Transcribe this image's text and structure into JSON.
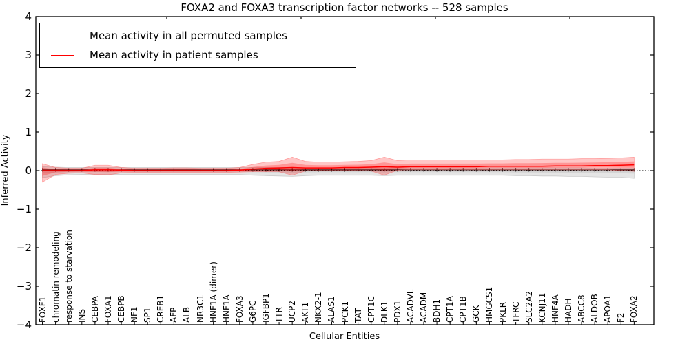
{
  "chart_data": {
    "type": "line",
    "title": "FOXA2 and FOXA3 transcription factor networks -- 528 samples",
    "xlabel": "Cellular Entities",
    "ylabel": "Inferred Activity",
    "ylim": [
      -4,
      4
    ],
    "grid": false,
    "legend_position": "upper left",
    "yticks": [
      4,
      3,
      2,
      1,
      0,
      -1,
      -2,
      -3,
      -4
    ],
    "ytick_labels": [
      "4",
      "3",
      "2",
      "1",
      "0",
      "−1",
      "−2",
      "−3",
      "−4"
    ],
    "zero_line": {
      "value": 0,
      "style": "dotted",
      "color": "#000000"
    },
    "categories": [
      "FOXF1",
      "chromatin remodeling",
      "response to starvation",
      "INS",
      "CEBPA",
      "FOXA1",
      "CEBPB",
      "NF1",
      "SP1",
      "CREB1",
      "AFP",
      "ALB",
      "NR3C1",
      "HNF1A (dimer)",
      "HNF1A",
      "FOXA3",
      "G6PC",
      "IGFBP1",
      "TTR",
      "UCP2",
      "AKT1",
      "NKX2-1",
      "ALAS1",
      "PCK1",
      "TAT",
      "CPT1C",
      "DLK1",
      "PDX1",
      "ACADVL",
      "ACADM",
      "BDH1",
      "CPT1A",
      "CPT1B",
      "GCK",
      "HMGCS1",
      "PKLR",
      "TFRC",
      "SLC2A2",
      "KCNJ11",
      "HNF4A",
      "HADH",
      "ABCC8",
      "ALDOB",
      "APOA1",
      "F2",
      "FOXA2"
    ],
    "series": [
      {
        "name": "Mean activity in all permuted samples",
        "color": "#000000",
        "marker": "vertical-tick",
        "values": [
          0.02,
          0.02,
          0.02,
          0.02,
          0.02,
          0.02,
          0.02,
          0.02,
          0.02,
          0.02,
          0.02,
          0.02,
          0.02,
          0.02,
          0.02,
          0.02,
          0.02,
          0.02,
          0.02,
          0.02,
          0.02,
          0.02,
          0.02,
          0.02,
          0.02,
          0.02,
          0.02,
          0.02,
          0.02,
          0.02,
          0.02,
          0.02,
          0.02,
          0.02,
          0.02,
          0.02,
          0.02,
          0.02,
          0.02,
          0.02,
          0.02,
          0.02,
          0.02,
          0.02,
          0.02,
          0.02
        ],
        "band_upper": [
          0.1,
          0.09,
          0.08,
          0.08,
          0.08,
          0.08,
          0.08,
          0.08,
          0.08,
          0.08,
          0.08,
          0.08,
          0.08,
          0.08,
          0.08,
          0.08,
          0.08,
          0.08,
          0.08,
          0.08,
          0.07,
          0.07,
          0.07,
          0.07,
          0.07,
          0.07,
          0.07,
          0.07,
          0.07,
          0.07,
          0.07,
          0.07,
          0.07,
          0.07,
          0.07,
          0.07,
          0.07,
          0.07,
          0.07,
          0.07,
          0.07,
          0.07,
          0.06,
          0.06,
          0.06,
          0.06
        ],
        "band_lower": [
          -0.18,
          -0.13,
          -0.11,
          -0.1,
          -0.1,
          -0.1,
          -0.1,
          -0.1,
          -0.1,
          -0.1,
          -0.1,
          -0.1,
          -0.1,
          -0.1,
          -0.1,
          -0.1,
          -0.12,
          -0.13,
          -0.14,
          -0.15,
          -0.13,
          -0.12,
          -0.12,
          -0.12,
          -0.12,
          -0.12,
          -0.13,
          -0.12,
          -0.12,
          -0.12,
          -0.12,
          -0.12,
          -0.12,
          -0.12,
          -0.12,
          -0.12,
          -0.13,
          -0.13,
          -0.14,
          -0.14,
          -0.15,
          -0.15,
          -0.16,
          -0.17,
          -0.17,
          -0.2
        ],
        "band_color": "#000000"
      },
      {
        "name": "Mean activity in patient samples",
        "color": "#ff0000",
        "marker": "none",
        "values": [
          0.0,
          0.0,
          0.0,
          0.0,
          0.02,
          0.02,
          0.01,
          0.0,
          0.0,
          0.0,
          0.0,
          0.0,
          0.0,
          0.0,
          0.0,
          0.01,
          0.04,
          0.06,
          0.07,
          0.08,
          0.07,
          0.07,
          0.07,
          0.08,
          0.08,
          0.09,
          0.1,
          0.09,
          0.1,
          0.1,
          0.1,
          0.1,
          0.1,
          0.1,
          0.11,
          0.11,
          0.11,
          0.11,
          0.11,
          0.12,
          0.12,
          0.12,
          0.13,
          0.13,
          0.14,
          0.15
        ],
        "band_upper": [
          0.18,
          0.08,
          0.06,
          0.06,
          0.14,
          0.14,
          0.08,
          0.06,
          0.06,
          0.06,
          0.07,
          0.07,
          0.06,
          0.06,
          0.06,
          0.08,
          0.16,
          0.22,
          0.24,
          0.35,
          0.24,
          0.22,
          0.22,
          0.23,
          0.24,
          0.26,
          0.35,
          0.26,
          0.28,
          0.28,
          0.28,
          0.28,
          0.28,
          0.28,
          0.28,
          0.28,
          0.29,
          0.29,
          0.3,
          0.3,
          0.3,
          0.31,
          0.31,
          0.32,
          0.33,
          0.35
        ],
        "band_lower": [
          -0.3,
          -0.1,
          -0.07,
          -0.06,
          -0.1,
          -0.11,
          -0.06,
          -0.05,
          -0.05,
          -0.05,
          -0.05,
          -0.05,
          -0.05,
          -0.05,
          -0.05,
          -0.04,
          -0.03,
          -0.03,
          -0.03,
          -0.12,
          -0.01,
          0.0,
          0.0,
          0.0,
          0.0,
          -0.01,
          -0.12,
          0.01,
          0.02,
          0.02,
          0.02,
          0.02,
          0.02,
          0.02,
          0.02,
          0.02,
          0.02,
          0.02,
          0.02,
          0.02,
          0.02,
          0.02,
          0.02,
          0.02,
          0.0,
          -0.02
        ],
        "band_color": "#ff0000"
      }
    ]
  },
  "legend": {
    "items": [
      {
        "label": "Mean activity in all permuted samples",
        "color": "#000000"
      },
      {
        "label": "Mean activity in patient samples",
        "color": "#ff0000"
      }
    ]
  },
  "colors": {
    "axis": "#000000",
    "background": "#ffffff",
    "patient_line": "#ff0000",
    "permuted_line": "#000000"
  }
}
